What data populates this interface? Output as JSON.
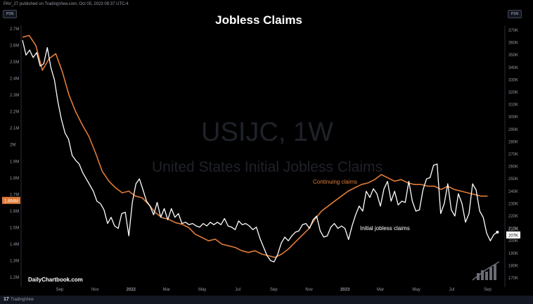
{
  "header": {
    "published": "PAV_27 published on TradingView.com, Oct 05, 2023 08:37 UTC-4"
  },
  "buttons": {
    "left": "PSN",
    "right": "PSN"
  },
  "footer": {
    "logo": "17",
    "brand": "TradingView"
  },
  "watermark": {
    "symbol": "USIJC, 1W",
    "name": "United States Initial Jobless Claims"
  },
  "brand_label": "DailyChartbook.com",
  "chart_data": {
    "type": "line",
    "title": "Jobless Claims",
    "left_axis": {
      "ticks": [
        "2.7M",
        "2.6M",
        "2.5M",
        "2.4M",
        "2.3M",
        "2.2M",
        "2.1M",
        "2M",
        "1.9M",
        "1.8M",
        "1.7M",
        "1.6M",
        "1.5M",
        "1.4M",
        "1.3M",
        "1.2M"
      ],
      "min": 1.2,
      "max": 2.7,
      "unit": "M"
    },
    "right_axis": {
      "ticks": [
        "370K",
        "360K",
        "350K",
        "340K",
        "330K",
        "320K",
        "310K",
        "300K",
        "290K",
        "280K",
        "270K",
        "260K",
        "250K",
        "240K",
        "230K",
        "220K",
        "210K",
        "200K",
        "190K",
        "180K",
        "170K"
      ],
      "min": 170,
      "max": 370,
      "unit": "K"
    },
    "x_ticks": [
      {
        "label": "Sep",
        "t": 0.084
      },
      {
        "label": "Nov",
        "t": 0.164
      },
      {
        "label": "2022",
        "t": 0.245
      },
      {
        "label": "Mar",
        "t": 0.325
      },
      {
        "label": "May",
        "t": 0.406
      },
      {
        "label": "Jul",
        "t": 0.486
      },
      {
        "label": "Sep",
        "t": 0.567
      },
      {
        "label": "Nov",
        "t": 0.647
      },
      {
        "label": "2023",
        "t": 0.728
      },
      {
        "label": "Mar",
        "t": 0.808
      },
      {
        "label": "May",
        "t": 0.889
      },
      {
        "label": "Jul",
        "t": 0.969
      },
      {
        "label": "Sep",
        "t": 1.05
      }
    ],
    "badges": {
      "left": "1.664M",
      "right_top": "210K",
      "right_bottom": "207K"
    },
    "series": [
      {
        "name": "Continuing claims",
        "axis": "left",
        "color": "#e07b39",
        "x": [
          0,
          0.015,
          0.03,
          0.045,
          0.06,
          0.075,
          0.09,
          0.105,
          0.12,
          0.135,
          0.15,
          0.165,
          0.18,
          0.195,
          0.21,
          0.225,
          0.24,
          0.255,
          0.27,
          0.285,
          0.3,
          0.315,
          0.33,
          0.345,
          0.36,
          0.375,
          0.39,
          0.405,
          0.42,
          0.435,
          0.45,
          0.465,
          0.48,
          0.495,
          0.51,
          0.525,
          0.54,
          0.555,
          0.57,
          0.585,
          0.6,
          0.615,
          0.63,
          0.645,
          0.66,
          0.675,
          0.69,
          0.705,
          0.72,
          0.735,
          0.75,
          0.765,
          0.78,
          0.795,
          0.81,
          0.825,
          0.84,
          0.855,
          0.87,
          0.885,
          0.9,
          0.915,
          0.93,
          0.945,
          0.96,
          0.975,
          0.99,
          1.005,
          1.02,
          1.035,
          1.05
        ],
        "values": [
          2.65,
          2.66,
          2.6,
          2.45,
          2.52,
          2.55,
          2.44,
          2.3,
          2.2,
          2.12,
          2.05,
          1.95,
          1.84,
          1.78,
          1.74,
          1.71,
          1.72,
          1.69,
          1.68,
          1.64,
          1.59,
          1.56,
          1.55,
          1.53,
          1.52,
          1.5,
          1.46,
          1.44,
          1.42,
          1.43,
          1.4,
          1.39,
          1.38,
          1.36,
          1.35,
          1.36,
          1.34,
          1.33,
          1.32,
          1.34,
          1.37,
          1.41,
          1.45,
          1.49,
          1.55,
          1.6,
          1.63,
          1.66,
          1.69,
          1.72,
          1.74,
          1.76,
          1.77,
          1.79,
          1.82,
          1.8,
          1.78,
          1.79,
          1.77,
          1.76,
          1.76,
          1.75,
          1.75,
          1.73,
          1.75,
          1.73,
          1.72,
          1.71,
          1.7,
          1.69,
          1.69
        ]
      },
      {
        "name": "Initial jobless claims",
        "axis": "right",
        "color": "#ffffff",
        "x": [
          0,
          0.008,
          0.016,
          0.024,
          0.032,
          0.04,
          0.048,
          0.056,
          0.064,
          0.072,
          0.08,
          0.088,
          0.096,
          0.104,
          0.112,
          0.12,
          0.128,
          0.136,
          0.144,
          0.152,
          0.16,
          0.168,
          0.176,
          0.184,
          0.192,
          0.2,
          0.208,
          0.216,
          0.224,
          0.232,
          0.24,
          0.248,
          0.256,
          0.264,
          0.272,
          0.28,
          0.288,
          0.296,
          0.304,
          0.312,
          0.32,
          0.328,
          0.336,
          0.344,
          0.352,
          0.36,
          0.368,
          0.376,
          0.384,
          0.392,
          0.4,
          0.408,
          0.416,
          0.424,
          0.432,
          0.44,
          0.448,
          0.456,
          0.464,
          0.472,
          0.48,
          0.488,
          0.496,
          0.504,
          0.512,
          0.52,
          0.528,
          0.536,
          0.544,
          0.552,
          0.56,
          0.568,
          0.576,
          0.584,
          0.592,
          0.6,
          0.608,
          0.616,
          0.624,
          0.632,
          0.64,
          0.648,
          0.656,
          0.664,
          0.672,
          0.68,
          0.688,
          0.696,
          0.704,
          0.712,
          0.72,
          0.728,
          0.736,
          0.744,
          0.752,
          0.76,
          0.768,
          0.776,
          0.784,
          0.792,
          0.8,
          0.808,
          0.816,
          0.824,
          0.832,
          0.84,
          0.848,
          0.856,
          0.864,
          0.872,
          0.88,
          0.888,
          0.896,
          0.904,
          0.912,
          0.92,
          0.928,
          0.936,
          0.944,
          0.952,
          0.96,
          0.968,
          0.976,
          0.984,
          0.992,
          1.0,
          1.008,
          1.016,
          1.024,
          1.032,
          1.04,
          1.048,
          1.056,
          1.064,
          1.072
        ],
        "values": [
          362,
          350,
          354,
          348,
          352,
          341,
          343,
          356,
          340,
          330,
          312,
          298,
          287,
          282,
          269,
          265,
          262,
          255,
          250,
          245,
          240,
          232,
          230,
          225,
          214,
          219,
          212,
          210,
          222,
          223,
          204,
          231,
          246,
          250,
          241,
          232,
          228,
          221,
          231,
          219,
          226,
          217,
          226,
          219,
          222,
          214,
          215,
          213,
          214,
          212,
          211,
          214,
          212,
          215,
          213,
          215,
          213,
          218,
          212,
          211,
          209,
          216,
          213,
          214,
          212,
          209,
          211,
          202,
          195,
          188,
          184,
          183,
          189,
          198,
          203,
          200,
          204,
          207,
          208,
          213,
          214,
          210,
          217,
          220,
          208,
          203,
          204,
          211,
          214,
          210,
          212,
          210,
          201,
          212,
          221,
          228,
          224,
          240,
          235,
          242,
          238,
          228,
          242,
          248,
          232,
          240,
          229,
          232,
          231,
          248,
          232,
          224,
          225,
          241,
          250,
          251,
          261,
          262,
          222,
          230,
          246,
          225,
          220,
          238,
          230,
          215,
          222,
          246,
          241,
          224,
          219,
          206,
          200,
          205,
          207
        ]
      }
    ]
  }
}
